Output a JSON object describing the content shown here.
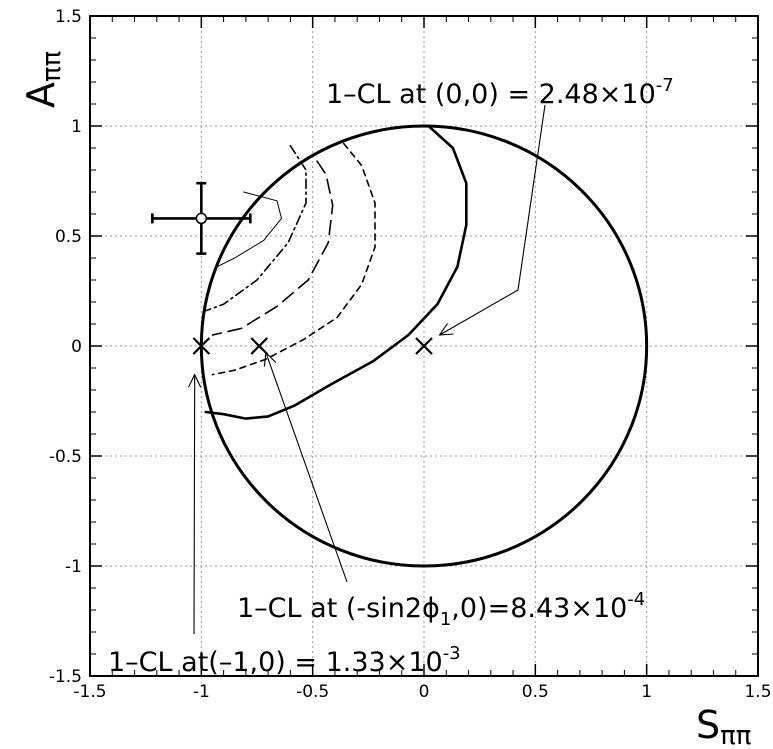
{
  "chart_data": {
    "type": "scatter",
    "title": "",
    "xlabel": {
      "main": "S",
      "sub": "ππ"
    },
    "ylabel": {
      "main": "A",
      "sub": "ππ"
    },
    "xlim": [
      -1.5,
      1.5
    ],
    "ylim": [
      -1.5,
      1.5
    ],
    "grid": true,
    "xticks": [
      -1.5,
      -1,
      -0.5,
      0,
      0.5,
      1,
      1.5
    ],
    "yticks": [
      -1.5,
      -1,
      -0.5,
      0,
      0.5,
      1,
      1.5
    ],
    "xtick_labels": [
      "-1.5",
      "-1",
      "-0.5",
      "0",
      "0.5",
      "1",
      "1.5"
    ],
    "ytick_labels": [
      "-1.5",
      "-1",
      "-0.5",
      "0",
      "0.5",
      "1",
      "1.5"
    ],
    "physical_boundary": {
      "shape": "unit-circle",
      "center": [
        0,
        0
      ],
      "radius": 1
    },
    "measurement": {
      "x": -1.0,
      "y": 0.58,
      "x_err": 0.22,
      "y_err": 0.16
    },
    "test_points": [
      {
        "x": 0,
        "y": 0
      },
      {
        "x": -0.74,
        "y": 0
      },
      {
        "x": -1,
        "y": 0
      }
    ],
    "contours": [
      {
        "style": "solid-thin",
        "points": [
          [
            -0.81,
            0.7
          ],
          [
            -0.66,
            0.66
          ],
          [
            -0.64,
            0.58
          ],
          [
            -0.72,
            0.48
          ],
          [
            -0.85,
            0.4
          ],
          [
            -0.93,
            0.36
          ]
        ]
      },
      {
        "style": "dash-dot",
        "points": [
          [
            -0.6,
            0.91
          ],
          [
            -0.53,
            0.8
          ],
          [
            -0.53,
            0.65
          ],
          [
            -0.61,
            0.47
          ],
          [
            -0.75,
            0.3
          ],
          [
            -0.9,
            0.19
          ],
          [
            -0.98,
            0.16
          ]
        ]
      },
      {
        "style": "long-dash",
        "points": [
          [
            -0.48,
            0.84
          ],
          [
            -0.44,
            0.78
          ],
          [
            -0.41,
            0.64
          ],
          [
            -0.43,
            0.47
          ],
          [
            -0.52,
            0.3
          ],
          [
            -0.66,
            0.18
          ],
          [
            -0.82,
            0.08
          ],
          [
            -0.95,
            0.05
          ]
        ]
      },
      {
        "style": "short-dash",
        "points": [
          [
            -0.36,
            0.92
          ],
          [
            -0.28,
            0.82
          ],
          [
            -0.22,
            0.65
          ],
          [
            -0.22,
            0.45
          ],
          [
            -0.28,
            0.28
          ],
          [
            -0.39,
            0.13
          ],
          [
            -0.54,
            0.03
          ],
          [
            -0.71,
            -0.06
          ],
          [
            -0.85,
            -0.11
          ],
          [
            -0.95,
            -0.13
          ]
        ]
      },
      {
        "style": "solid-thick",
        "points": [
          [
            0.02,
            1.0
          ],
          [
            0.13,
            0.9
          ],
          [
            0.19,
            0.74
          ],
          [
            0.19,
            0.55
          ],
          [
            0.15,
            0.36
          ],
          [
            0.06,
            0.19
          ],
          [
            -0.07,
            0.05
          ],
          [
            -0.23,
            -0.07
          ],
          [
            -0.41,
            -0.17
          ],
          [
            -0.58,
            -0.27
          ],
          [
            -0.7,
            -0.32
          ],
          [
            -0.8,
            -0.33
          ],
          [
            -0.9,
            -0.31
          ],
          [
            -0.98,
            -0.3
          ]
        ]
      }
    ],
    "annotations": [
      {
        "label_parts": [
          "1–CL at (0,0) = 2.48×10",
          "-7"
        ],
        "points_to": [
          0.07,
          0.05
        ]
      },
      {
        "label_parts": [
          "1–CL at (-sin2ϕ",
          "1",
          ",0)=8.43×10",
          "-4"
        ],
        "points_to": [
          -0.71,
          -0.03
        ]
      },
      {
        "label_parts": [
          "1–CL at(–1,0) = 1.33×10",
          "-3"
        ],
        "points_to": [
          -1.03,
          -0.13
        ]
      }
    ]
  }
}
